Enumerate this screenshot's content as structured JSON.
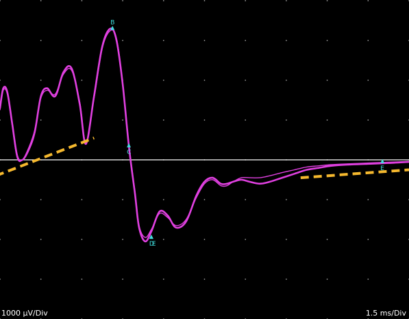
{
  "chart_data": {
    "type": "line",
    "y_scale_label": "1000 µV/Div",
    "x_scale_label": "1.5 ms/Div",
    "divisions": {
      "x": 10,
      "y": 8
    },
    "baseline_div": 4.0,
    "series": [
      {
        "color": "#e040e0",
        "x": [
          0.0,
          0.08,
          0.18,
          0.3,
          0.42,
          0.55,
          0.7,
          0.85,
          1.0,
          1.15,
          1.35,
          1.55,
          1.75,
          1.95,
          2.1,
          2.3,
          2.5,
          2.7,
          2.85,
          3.0,
          3.15,
          3.3,
          3.4,
          3.55,
          3.7,
          3.9,
          4.1,
          4.3,
          4.55,
          4.8,
          5.0,
          5.2,
          5.4,
          5.55,
          5.7,
          5.9,
          6.1,
          6.35,
          6.6,
          6.9,
          7.2,
          7.5,
          7.8,
          8.1,
          8.5,
          9.0,
          9.5,
          10.0
        ],
        "y": [
          1.3,
          1.8,
          1.7,
          0.9,
          0.1,
          0.0,
          0.25,
          0.7,
          1.6,
          1.8,
          1.6,
          2.2,
          2.3,
          1.4,
          0.4,
          1.6,
          2.85,
          3.3,
          3.0,
          1.9,
          0.35,
          -0.85,
          -1.7,
          -2.05,
          -1.8,
          -1.3,
          -1.4,
          -1.7,
          -1.55,
          -0.9,
          -0.55,
          -0.45,
          -0.6,
          -0.6,
          -0.55,
          -0.5,
          -0.55,
          -0.6,
          -0.55,
          -0.45,
          -0.35,
          -0.25,
          -0.2,
          -0.15,
          -0.12,
          -0.1,
          -0.08,
          -0.05
        ]
      },
      {
        "color": "#e040e0",
        "x": [
          0.0,
          0.08,
          0.18,
          0.3,
          0.42,
          0.55,
          0.7,
          0.85,
          1.0,
          1.15,
          1.35,
          1.55,
          1.75,
          1.95,
          2.1,
          2.3,
          2.5,
          2.7,
          2.85,
          3.0,
          3.15,
          3.3,
          3.4,
          3.55,
          3.7,
          3.9,
          4.1,
          4.3,
          4.55,
          4.8,
          5.0,
          5.2,
          5.4,
          5.55,
          5.7,
          5.9,
          6.1,
          6.35,
          6.6,
          6.9,
          7.2,
          7.5,
          7.8,
          8.1,
          8.5,
          9.0,
          9.5,
          10.0
        ],
        "y": [
          1.25,
          1.75,
          1.65,
          0.85,
          0.05,
          0.0,
          0.3,
          0.75,
          1.55,
          1.75,
          1.65,
          2.15,
          2.25,
          1.45,
          0.45,
          1.55,
          2.8,
          3.25,
          3.05,
          1.95,
          0.4,
          -0.8,
          -1.65,
          -1.95,
          -1.75,
          -1.35,
          -1.45,
          -1.65,
          -1.5,
          -0.95,
          -0.6,
          -0.5,
          -0.65,
          -0.65,
          -0.55,
          -0.45,
          -0.45,
          -0.45,
          -0.4,
          -0.32,
          -0.25,
          -0.18,
          -0.15,
          -0.12,
          -0.1,
          -0.08,
          -0.06,
          -0.04
        ]
      }
    ],
    "baselines": [
      {
        "color": "#f5b82e",
        "x": [
          -0.1,
          2.3
        ],
        "y": [
          -0.4,
          0.55
        ]
      },
      {
        "color": "#f5b82e",
        "x": [
          7.35,
          10.0
        ],
        "y": [
          -0.45,
          -0.25
        ]
      }
    ],
    "markers": [
      {
        "label": "B",
        "x": 2.75,
        "y": 3.3
      },
      {
        "label": "C",
        "x": 3.15,
        "y": 0.35
      },
      {
        "label": "D",
        "x": 3.7,
        "y": -1.95
      },
      {
        "label": "E",
        "x": 3.7,
        "y": -1.95
      },
      {
        "label": "E",
        "x": 9.35,
        "y": -0.05
      }
    ]
  }
}
